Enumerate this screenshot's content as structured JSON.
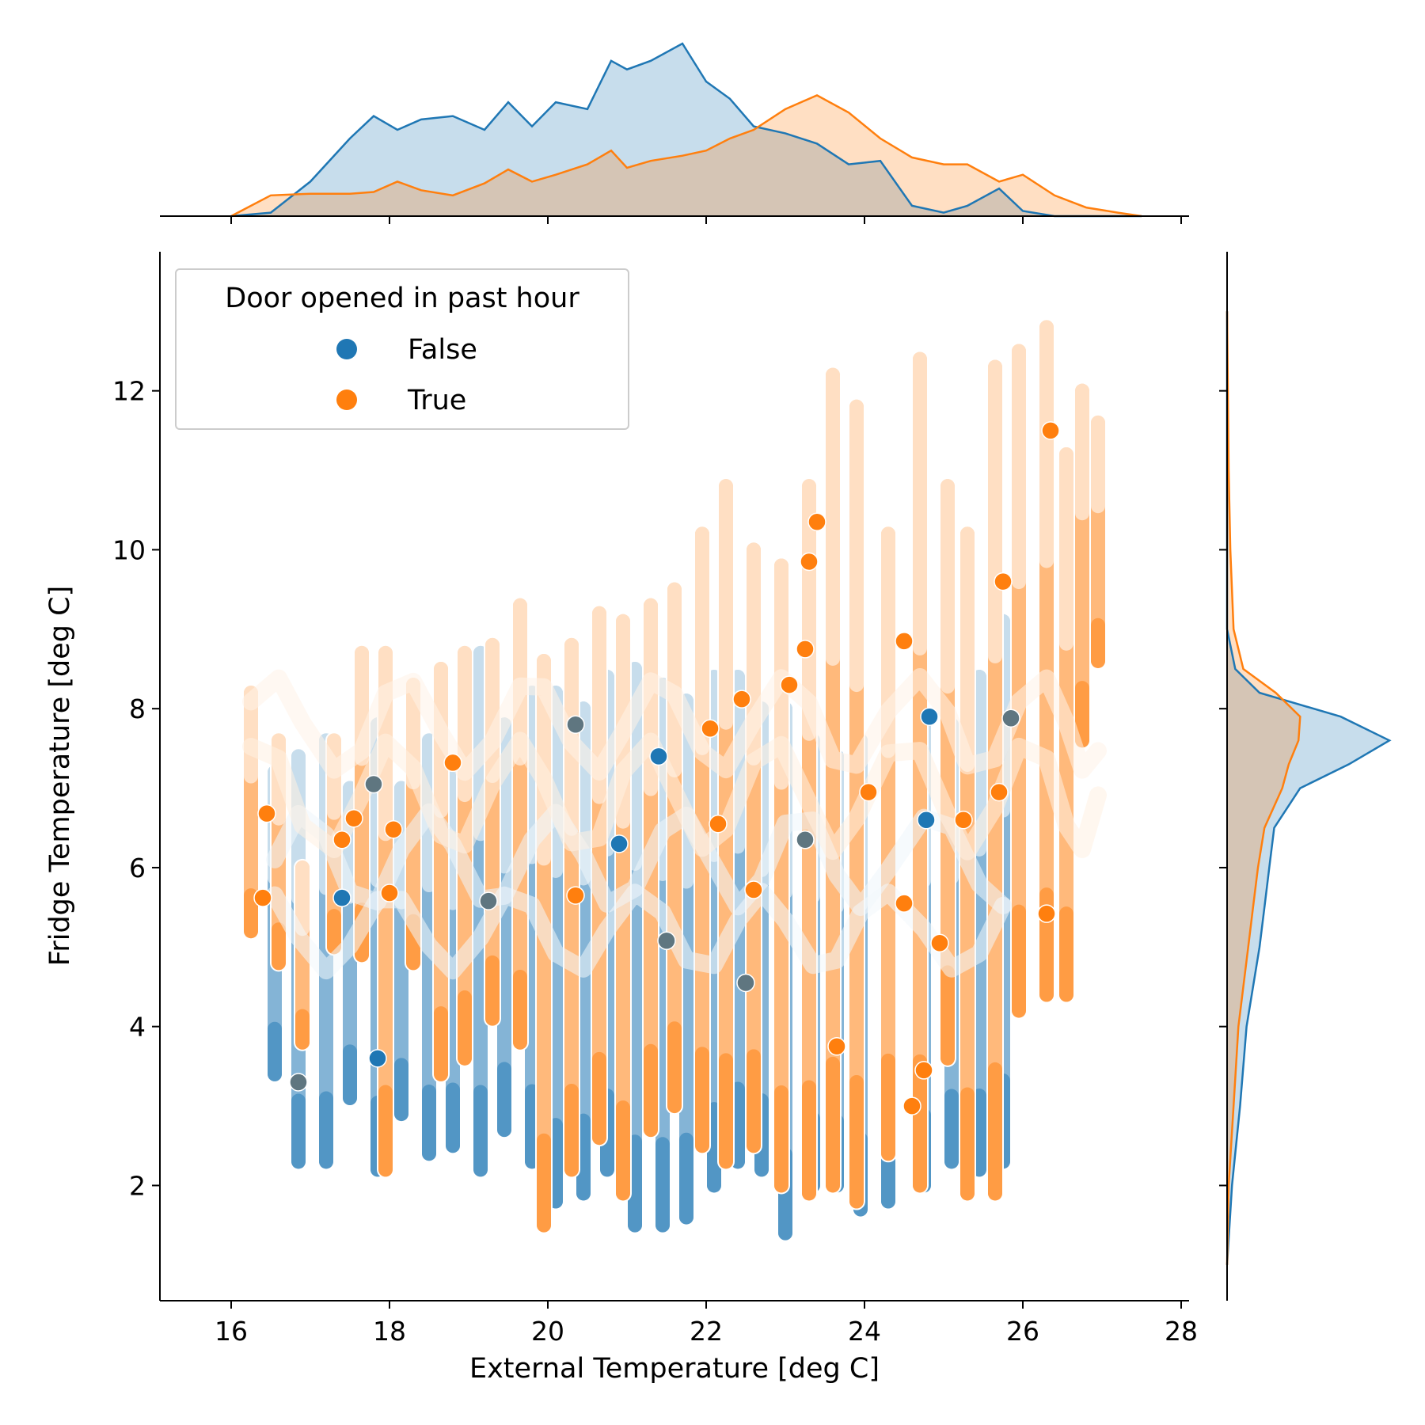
{
  "chart_data": {
    "type": "scatter",
    "xlabel": "External Temperature [deg C]",
    "ylabel": "Fridge Temperature [deg C]",
    "xlim": [
      15.1,
      28.1
    ],
    "ylim": [
      0.55,
      13.75
    ],
    "xticks": [
      16,
      18,
      20,
      22,
      24,
      26,
      28
    ],
    "yticks": [
      2,
      4,
      6,
      8,
      10,
      12
    ],
    "grid": false,
    "legend": {
      "title": "Door opened in past hour",
      "placement": "upper-left"
    },
    "colors": {
      "False": "#1f77b4",
      "True": "#ff7f0e",
      "overlap": "#c4c4bf"
    },
    "series": [
      {
        "name": "False",
        "color": "#1f77b4",
        "columns": [
          {
            "x": 16.55,
            "ymin": 3.4,
            "ymax": 7.2
          },
          {
            "x": 16.85,
            "ymin": 2.3,
            "ymax": 7.4
          },
          {
            "x": 17.2,
            "ymin": 2.3,
            "ymax": 7.6
          },
          {
            "x": 17.5,
            "ymin": 3.1,
            "ymax": 7.0
          },
          {
            "x": 17.85,
            "ymin": 2.2,
            "ymax": 7.8
          },
          {
            "x": 18.15,
            "ymin": 2.9,
            "ymax": 7.0
          },
          {
            "x": 18.5,
            "ymin": 2.4,
            "ymax": 7.6
          },
          {
            "x": 18.8,
            "ymin": 2.5,
            "ymax": 7.2
          },
          {
            "x": 19.15,
            "ymin": 2.2,
            "ymax": 8.7
          },
          {
            "x": 19.45,
            "ymin": 2.7,
            "ymax": 7.8
          },
          {
            "x": 19.8,
            "ymin": 2.3,
            "ymax": 8.2
          },
          {
            "x": 20.1,
            "ymin": 1.8,
            "ymax": 8.2
          },
          {
            "x": 20.45,
            "ymin": 1.9,
            "ymax": 8.0
          },
          {
            "x": 20.75,
            "ymin": 2.2,
            "ymax": 8.4
          },
          {
            "x": 21.1,
            "ymin": 1.5,
            "ymax": 8.5
          },
          {
            "x": 21.45,
            "ymin": 1.5,
            "ymax": 8.3
          },
          {
            "x": 21.75,
            "ymin": 1.6,
            "ymax": 8.1
          },
          {
            "x": 22.1,
            "ymin": 2.0,
            "ymax": 8.4
          },
          {
            "x": 22.4,
            "ymin": 2.3,
            "ymax": 8.4
          },
          {
            "x": 22.7,
            "ymin": 2.2,
            "ymax": 8.0
          },
          {
            "x": 23.0,
            "ymin": 1.4,
            "ymax": 8.0
          },
          {
            "x": 23.35,
            "ymin": 2.0,
            "ymax": 7.6
          },
          {
            "x": 23.65,
            "ymin": 2.0,
            "ymax": 7.4
          },
          {
            "x": 23.95,
            "ymin": 1.7,
            "ymax": 7.6
          },
          {
            "x": 24.3,
            "ymin": 1.8,
            "ymax": 7.4
          },
          {
            "x": 24.75,
            "ymin": 2.0,
            "ymax": 7.9
          },
          {
            "x": 25.1,
            "ymin": 2.3,
            "ymax": 7.8
          },
          {
            "x": 25.45,
            "ymin": 2.2,
            "ymax": 8.4
          },
          {
            "x": 25.75,
            "ymin": 2.3,
            "ymax": 9.1
          }
        ],
        "highlighted_points": [
          {
            "x": 17.4,
            "y": 5.62
          },
          {
            "x": 17.85,
            "y": 3.6
          },
          {
            "x": 24.82,
            "y": 7.9
          },
          {
            "x": 24.78,
            "y": 6.6
          },
          {
            "x": 21.4,
            "y": 7.4
          },
          {
            "x": 20.9,
            "y": 6.3
          }
        ]
      },
      {
        "name": "True",
        "color": "#ff7f0e",
        "columns": [
          {
            "x": 16.25,
            "ymin": 5.2,
            "ymax": 8.2
          },
          {
            "x": 16.6,
            "ymin": 4.8,
            "ymax": 7.6
          },
          {
            "x": 16.9,
            "ymin": 3.8,
            "ymax": 6.0
          },
          {
            "x": 17.3,
            "ymin": 5.0,
            "ymax": 7.6
          },
          {
            "x": 17.65,
            "ymin": 4.9,
            "ymax": 8.7
          },
          {
            "x": 17.95,
            "ymin": 2.2,
            "ymax": 8.7
          },
          {
            "x": 18.3,
            "ymin": 4.8,
            "ymax": 8.3
          },
          {
            "x": 18.65,
            "ymin": 3.4,
            "ymax": 8.5
          },
          {
            "x": 18.95,
            "ymin": 3.6,
            "ymax": 8.7
          },
          {
            "x": 19.3,
            "ymin": 4.1,
            "ymax": 8.8
          },
          {
            "x": 19.65,
            "ymin": 3.8,
            "ymax": 9.3
          },
          {
            "x": 19.95,
            "ymin": 1.5,
            "ymax": 8.6
          },
          {
            "x": 20.3,
            "ymin": 2.2,
            "ymax": 8.8
          },
          {
            "x": 20.65,
            "ymin": 2.6,
            "ymax": 9.2
          },
          {
            "x": 20.95,
            "ymin": 1.9,
            "ymax": 9.1
          },
          {
            "x": 21.3,
            "ymin": 2.7,
            "ymax": 9.3
          },
          {
            "x": 21.6,
            "ymin": 3.0,
            "ymax": 9.5
          },
          {
            "x": 21.95,
            "ymin": 2.5,
            "ymax": 10.2
          },
          {
            "x": 22.25,
            "ymin": 2.3,
            "ymax": 10.8
          },
          {
            "x": 22.6,
            "ymin": 2.5,
            "ymax": 10.0
          },
          {
            "x": 22.95,
            "ymin": 2.0,
            "ymax": 9.8
          },
          {
            "x": 23.3,
            "ymin": 1.9,
            "ymax": 10.8
          },
          {
            "x": 23.6,
            "ymin": 2.0,
            "ymax": 12.2
          },
          {
            "x": 23.9,
            "ymin": 1.8,
            "ymax": 11.8
          },
          {
            "x": 24.3,
            "ymin": 2.4,
            "ymax": 10.2
          },
          {
            "x": 24.7,
            "ymin": 2.0,
            "ymax": 12.4
          },
          {
            "x": 25.05,
            "ymin": 3.6,
            "ymax": 10.8
          },
          {
            "x": 25.3,
            "ymin": 1.9,
            "ymax": 10.2
          },
          {
            "x": 25.65,
            "ymin": 1.9,
            "ymax": 12.3
          },
          {
            "x": 25.95,
            "ymin": 4.2,
            "ymax": 12.5
          },
          {
            "x": 26.3,
            "ymin": 4.4,
            "ymax": 12.8
          },
          {
            "x": 26.55,
            "ymin": 4.4,
            "ymax": 11.2
          },
          {
            "x": 26.75,
            "ymin": 7.6,
            "ymax": 12.0
          },
          {
            "x": 26.95,
            "ymin": 8.6,
            "ymax": 11.6
          }
        ],
        "highlighted_points": [
          {
            "x": 16.45,
            "y": 6.68
          },
          {
            "x": 16.4,
            "y": 5.62
          },
          {
            "x": 17.4,
            "y": 6.35
          },
          {
            "x": 17.55,
            "y": 6.62
          },
          {
            "x": 18.05,
            "y": 6.48
          },
          {
            "x": 18.0,
            "y": 5.68
          },
          {
            "x": 18.8,
            "y": 7.32
          },
          {
            "x": 20.35,
            "y": 5.65
          },
          {
            "x": 22.05,
            "y": 7.75
          },
          {
            "x": 22.45,
            "y": 8.12
          },
          {
            "x": 22.6,
            "y": 5.72
          },
          {
            "x": 23.05,
            "y": 8.3
          },
          {
            "x": 23.25,
            "y": 8.75
          },
          {
            "x": 23.3,
            "y": 9.85
          },
          {
            "x": 23.4,
            "y": 10.35
          },
          {
            "x": 23.65,
            "y": 3.75
          },
          {
            "x": 24.5,
            "y": 8.85
          },
          {
            "x": 24.5,
            "y": 5.55
          },
          {
            "x": 24.6,
            "y": 3.0
          },
          {
            "x": 24.75,
            "y": 3.45
          },
          {
            "x": 24.95,
            "y": 5.05
          },
          {
            "x": 25.25,
            "y": 6.6
          },
          {
            "x": 25.7,
            "y": 6.95
          },
          {
            "x": 26.3,
            "y": 5.42
          },
          {
            "x": 26.35,
            "y": 11.5
          },
          {
            "x": 25.75,
            "y": 9.6
          },
          {
            "x": 24.05,
            "y": 6.95
          },
          {
            "x": 22.15,
            "y": 6.55
          }
        ]
      }
    ],
    "overlap_points": [
      {
        "x": 16.85,
        "y": 3.3
      },
      {
        "x": 17.8,
        "y": 7.05
      },
      {
        "x": 19.25,
        "y": 5.58
      },
      {
        "x": 20.35,
        "y": 7.8
      },
      {
        "x": 21.5,
        "y": 5.08
      },
      {
        "x": 22.5,
        "y": 4.55
      },
      {
        "x": 23.25,
        "y": 6.35
      },
      {
        "x": 25.85,
        "y": 7.88
      }
    ],
    "marginal_x_kde": {
      "x": [
        16.0,
        16.5,
        17.0,
        17.5,
        17.8,
        18.1,
        18.4,
        18.8,
        19.2,
        19.5,
        19.8,
        20.1,
        20.5,
        20.8,
        21.0,
        21.3,
        21.7,
        22.0,
        22.3,
        22.6,
        23.0,
        23.4,
        23.8,
        24.2,
        24.6,
        25.0,
        25.3,
        25.7,
        26.0,
        26.4,
        26.8,
        27.2,
        27.5
      ],
      "series": [
        {
          "name": "False",
          "density": [
            0.0,
            0.02,
            0.2,
            0.45,
            0.58,
            0.5,
            0.56,
            0.58,
            0.5,
            0.66,
            0.52,
            0.66,
            0.62,
            0.9,
            0.85,
            0.9,
            1.0,
            0.78,
            0.68,
            0.52,
            0.48,
            0.42,
            0.3,
            0.32,
            0.06,
            0.02,
            0.06,
            0.16,
            0.03,
            0.0,
            0.0,
            0.0,
            0.0
          ]
        },
        {
          "name": "True",
          "density": [
            0.0,
            0.12,
            0.13,
            0.13,
            0.14,
            0.2,
            0.15,
            0.12,
            0.19,
            0.27,
            0.2,
            0.24,
            0.3,
            0.38,
            0.28,
            0.32,
            0.35,
            0.38,
            0.45,
            0.5,
            0.62,
            0.7,
            0.6,
            0.45,
            0.34,
            0.3,
            0.3,
            0.2,
            0.24,
            0.12,
            0.05,
            0.02,
            0.0
          ]
        }
      ]
    },
    "marginal_y_kde": {
      "y": [
        1.0,
        2.0,
        3.0,
        4.0,
        4.5,
        5.0,
        5.5,
        6.0,
        6.5,
        7.0,
        7.3,
        7.6,
        7.9,
        8.2,
        8.5,
        9.0,
        10.0,
        11.0,
        12.0,
        13.0
      ],
      "series": [
        {
          "name": "False",
          "density": [
            0.0,
            0.03,
            0.08,
            0.12,
            0.16,
            0.2,
            0.23,
            0.26,
            0.29,
            0.45,
            0.75,
            1.0,
            0.7,
            0.2,
            0.05,
            0.0,
            0.0,
            0.0,
            0.0,
            0.0
          ]
        },
        {
          "name": "True",
          "density": [
            0.0,
            0.01,
            0.04,
            0.07,
            0.1,
            0.13,
            0.16,
            0.19,
            0.23,
            0.34,
            0.38,
            0.44,
            0.45,
            0.3,
            0.1,
            0.04,
            0.02,
            0.01,
            0.005,
            0.0
          ]
        }
      ]
    }
  }
}
